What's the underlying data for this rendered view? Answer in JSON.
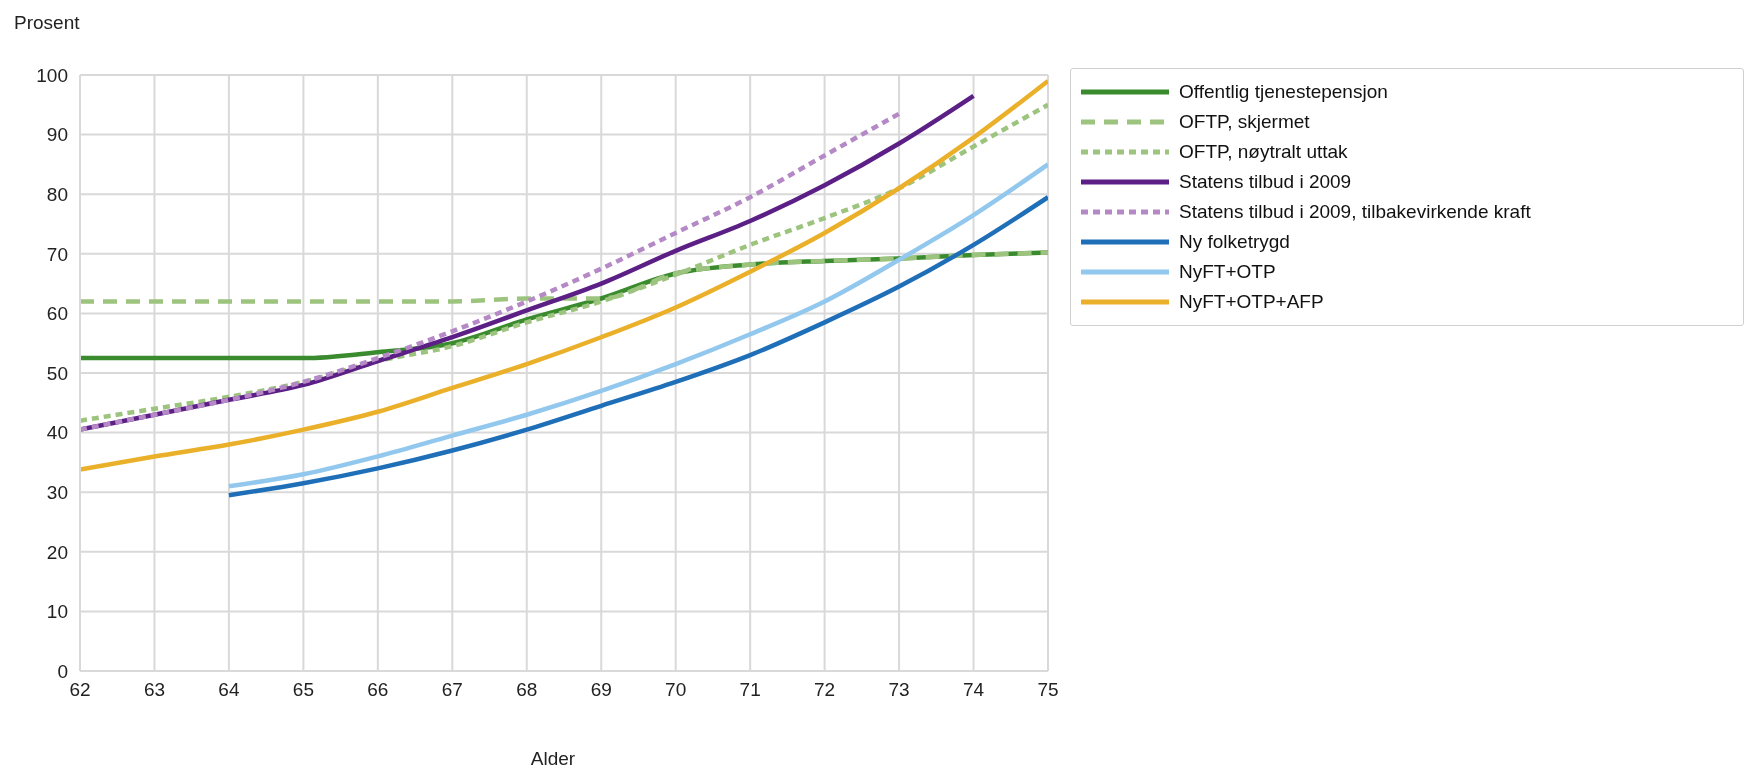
{
  "chart_data": {
    "type": "line",
    "xlabel": "Alder",
    "ylabel": "Prosent",
    "x": [
      62,
      63,
      64,
      65,
      66,
      67,
      68,
      69,
      70,
      71,
      72,
      73,
      74,
      75
    ],
    "xlim": [
      62,
      75
    ],
    "xticks": [
      62,
      63,
      64,
      65,
      66,
      67,
      68,
      69,
      70,
      71,
      72,
      73,
      74,
      75
    ],
    "ylim": [
      0,
      100
    ],
    "yticks": [
      0,
      10,
      20,
      30,
      40,
      50,
      60,
      70,
      80,
      90,
      100
    ],
    "grid": true,
    "legend": "right",
    "marker": "none",
    "series": [
      {
        "name": "Offentlig tjenestepensjon",
        "color": "#3a8a2e",
        "line_style": "solid",
        "values": [
          52.5,
          52.5,
          52.5,
          52.5,
          53.5,
          55,
          59,
          62.5,
          66.7,
          68.2,
          68.8,
          69.2,
          69.8,
          70.2
        ]
      },
      {
        "name": "OFTP, skjermet",
        "color": "#9dc47e",
        "line_style": "dashed",
        "values": [
          62,
          62,
          62,
          62,
          62,
          62,
          62.5,
          62.5,
          66.7,
          68.2,
          68.8,
          69.2,
          69.8,
          70.2
        ]
      },
      {
        "name": "OFTP, nøytralt uttak",
        "color": "#9dc47e",
        "line_style": "dotted",
        "values": [
          42,
          44,
          46,
          48.5,
          52,
          54.5,
          58.5,
          62,
          66.5,
          71.5,
          76,
          81,
          88,
          95
        ]
      },
      {
        "name": "Statens tilbud i 2009",
        "color": "#5b1f86",
        "line_style": "solid",
        "values": [
          40.5,
          43,
          45.5,
          48,
          52,
          56,
          60.5,
          65,
          70.5,
          75.5,
          81.5,
          88.5,
          96.5,
          null
        ]
      },
      {
        "name": "Statens tilbud i 2009, tilbakevirkende kraft",
        "color": "#b589c6",
        "line_style": "dotted",
        "values": [
          40.5,
          43,
          45.5,
          48.5,
          52.5,
          57,
          62,
          67.5,
          73.5,
          79.5,
          86.5,
          93.5,
          null,
          null
        ]
      },
      {
        "name": "Ny folketrygd",
        "color": "#1f6fb8",
        "line_style": "solid",
        "values": [
          null,
          null,
          29.5,
          31.5,
          34,
          37,
          40.5,
          44.5,
          48.5,
          53,
          58.5,
          64.5,
          71.5,
          79.5
        ]
      },
      {
        "name": "NyFT+OTP",
        "color": "#92c8ee",
        "line_style": "solid",
        "values": [
          null,
          null,
          31,
          33,
          36,
          39.5,
          43,
          47,
          51.5,
          56.5,
          62,
          69,
          76.5,
          85
        ]
      },
      {
        "name": "NyFT+OTP+AFP",
        "color": "#ebb02a",
        "line_style": "solid",
        "values": [
          33.8,
          36,
          38,
          40.5,
          43.5,
          47.5,
          51.5,
          56,
          61,
          67,
          73.5,
          81,
          89.5,
          99
        ]
      }
    ]
  }
}
